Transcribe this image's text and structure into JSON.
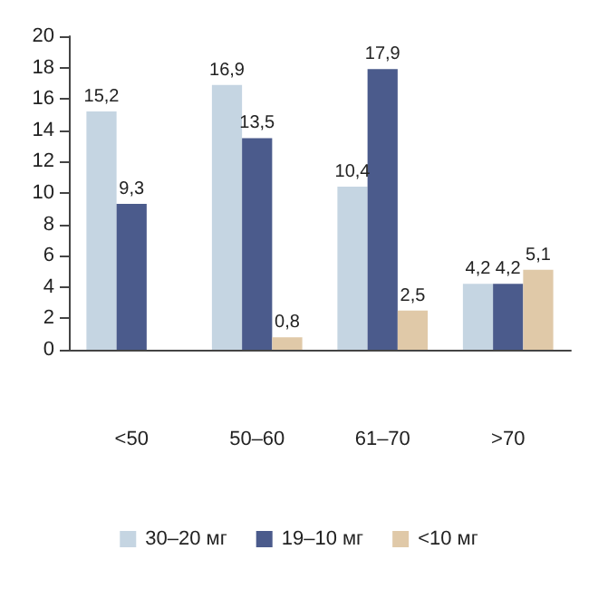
{
  "chart_data": {
    "type": "bar",
    "categories": [
      "<50",
      "50–60",
      "61–70",
      ">70"
    ],
    "series": [
      {
        "name": "30–20 мг",
        "color": "#c5d5e2",
        "values": [
          15.2,
          16.9,
          10.4,
          4.2
        ],
        "value_labels": [
          "15,2",
          "16,9",
          "10,4",
          "4,2"
        ]
      },
      {
        "name": "19–10 мг",
        "color": "#4b5b8c",
        "values": [
          9.3,
          13.5,
          17.9,
          4.2
        ],
        "value_labels": [
          "9,3",
          "13,5",
          "17,9",
          "4,2"
        ]
      },
      {
        "name": "<10 мг",
        "color": "#e0c9a8",
        "values": [
          null,
          0.8,
          2.5,
          5.1
        ],
        "value_labels": [
          null,
          "0,8",
          "2,5",
          "5,1"
        ]
      }
    ],
    "ylim": [
      0,
      20
    ],
    "yticks": [
      0,
      2,
      4,
      6,
      8,
      10,
      12,
      14,
      16,
      18,
      20
    ],
    "grid": false,
    "legend": "bottom"
  }
}
